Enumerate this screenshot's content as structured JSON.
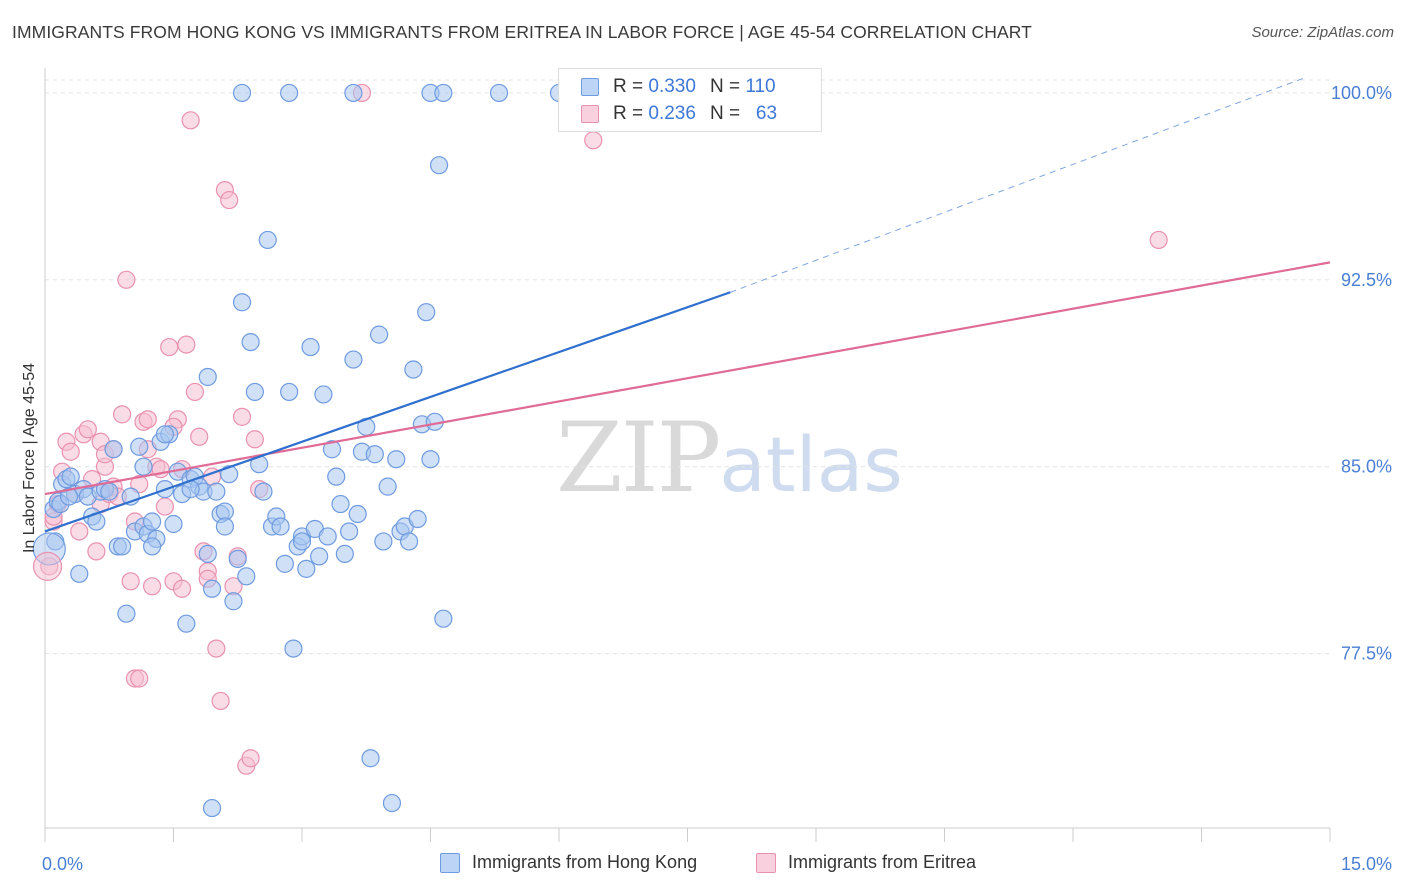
{
  "title": "IMMIGRANTS FROM HONG KONG VS IMMIGRANTS FROM ERITREA IN LABOR FORCE | AGE 45-54 CORRELATION CHART",
  "source": "Source: ZipAtlas.com",
  "watermark": {
    "zip": "ZIP",
    "atlas": "atlas"
  },
  "legend": {
    "blue": {
      "r_label": "R =",
      "r_value": "0.330",
      "n_label": "N =",
      "n_value": "110"
    },
    "pink": {
      "r_label": "R =",
      "r_value": "0.236",
      "n_label": "N =",
      "n_value": "63"
    }
  },
  "colors": {
    "blue_fill": "#a8c6f0",
    "blue_stroke": "#6f9be0",
    "blue_line": "#2f6fce",
    "pink_fill": "#f6c0d2",
    "pink_stroke": "#e991b0",
    "pink_line": "#df6b96",
    "grid": "#e3e3e3",
    "tick_text": "#4a7fd4"
  },
  "chart_data": {
    "type": "scatter",
    "title": "IMMIGRANTS FROM HONG KONG VS IMMIGRANTS FROM ERITREA IN LABOR FORCE | AGE 45-54 CORRELATION CHART",
    "xlabel": "",
    "ylabel": "In Labor Force | Age 45-54",
    "xlim": [
      0,
      15
    ],
    "ylim": [
      70.5,
      101
    ],
    "x_ticks": [
      0,
      15
    ],
    "x_tick_labels": [
      "0.0%",
      "15.0%"
    ],
    "y_ticks": [
      77.5,
      85.0,
      92.5,
      100.0
    ],
    "y_tick_labels": [
      "77.5%",
      "85.0%",
      "92.5%",
      "100.0%"
    ],
    "grid": true,
    "legend_position": "top-center",
    "series": [
      {
        "name": "Immigrants from Hong Kong",
        "color": "#a8c6f0",
        "r": 0.33,
        "n": 110,
        "trend": {
          "x0": 0.0,
          "y0": 82.4,
          "x1": 8.0,
          "y1": 92.0,
          "dashed_to_x": 14.7,
          "dashed_to_y": 100.6
        },
        "points": [
          [
            0.1,
            83.3
          ],
          [
            0.15,
            83.6
          ],
          [
            0.2,
            84.3
          ],
          [
            0.25,
            84.5
          ],
          [
            0.3,
            84.6
          ],
          [
            0.35,
            83.9
          ],
          [
            0.4,
            80.7
          ],
          [
            0.45,
            84.1
          ],
          [
            0.5,
            83.8
          ],
          [
            0.55,
            83.0
          ],
          [
            0.6,
            82.8
          ],
          [
            0.65,
            84.0
          ],
          [
            0.7,
            84.1
          ],
          [
            0.75,
            84.0
          ],
          [
            0.8,
            85.7
          ],
          [
            0.85,
            81.8
          ],
          [
            0.9,
            81.8
          ],
          [
            0.95,
            79.1
          ],
          [
            1.0,
            83.8
          ],
          [
            1.05,
            82.4
          ],
          [
            1.1,
            85.8
          ],
          [
            1.15,
            82.6
          ],
          [
            1.2,
            82.3
          ],
          [
            1.25,
            82.8
          ],
          [
            1.3,
            82.1
          ],
          [
            1.35,
            86.0
          ],
          [
            1.4,
            84.1
          ],
          [
            1.45,
            86.3
          ],
          [
            1.5,
            82.7
          ],
          [
            1.55,
            84.8
          ],
          [
            1.6,
            83.9
          ],
          [
            1.65,
            78.7
          ],
          [
            1.7,
            84.5
          ],
          [
            1.75,
            84.6
          ],
          [
            1.8,
            84.2
          ],
          [
            1.85,
            84.0
          ],
          [
            1.9,
            81.5
          ],
          [
            1.95,
            80.1
          ],
          [
            2.0,
            84.0
          ],
          [
            2.05,
            83.1
          ],
          [
            2.1,
            83.2
          ],
          [
            2.15,
            84.7
          ],
          [
            2.2,
            79.6
          ],
          [
            2.25,
            81.3
          ],
          [
            2.3,
            91.6
          ],
          [
            2.35,
            80.6
          ],
          [
            2.4,
            90.0
          ],
          [
            2.45,
            88.0
          ],
          [
            2.5,
            85.1
          ],
          [
            2.55,
            84.0
          ],
          [
            2.6,
            94.1
          ],
          [
            2.65,
            82.6
          ],
          [
            2.7,
            83.0
          ],
          [
            2.75,
            82.6
          ],
          [
            2.8,
            81.1
          ],
          [
            2.85,
            88.0
          ],
          [
            2.9,
            77.7
          ],
          [
            2.95,
            81.8
          ],
          [
            3.0,
            82.2
          ],
          [
            3.05,
            80.9
          ],
          [
            3.1,
            89.8
          ],
          [
            3.15,
            82.5
          ],
          [
            3.2,
            81.4
          ],
          [
            3.25,
            87.9
          ],
          [
            3.3,
            82.2
          ],
          [
            3.35,
            85.7
          ],
          [
            3.4,
            84.6
          ],
          [
            3.45,
            83.5
          ],
          [
            3.5,
            81.5
          ],
          [
            3.55,
            82.4
          ],
          [
            3.6,
            89.3
          ],
          [
            3.65,
            83.1
          ],
          [
            3.7,
            85.6
          ],
          [
            3.75,
            86.6
          ],
          [
            3.8,
            73.3
          ],
          [
            3.85,
            85.5
          ],
          [
            3.9,
            90.3
          ],
          [
            3.95,
            82.0
          ],
          [
            4.0,
            84.2
          ],
          [
            4.05,
            71.5
          ],
          [
            4.1,
            85.3
          ],
          [
            4.15,
            82.4
          ],
          [
            4.2,
            82.6
          ],
          [
            4.25,
            82.0
          ],
          [
            4.3,
            88.9
          ],
          [
            4.35,
            82.9
          ],
          [
            4.4,
            86.7
          ],
          [
            4.45,
            91.2
          ],
          [
            4.5,
            85.3
          ],
          [
            4.55,
            86.8
          ],
          [
            4.6,
            97.1
          ],
          [
            4.65,
            78.9
          ],
          [
            2.3,
            100.0
          ],
          [
            2.85,
            100.0
          ],
          [
            3.6,
            100.0
          ],
          [
            4.5,
            100.0
          ],
          [
            4.65,
            100.0
          ],
          [
            5.3,
            100.0
          ],
          [
            6.0,
            100.0
          ],
          [
            0.12,
            82.0
          ],
          [
            0.18,
            83.5
          ],
          [
            0.28,
            83.8
          ],
          [
            1.25,
            81.8
          ],
          [
            1.9,
            88.6
          ],
          [
            1.15,
            85.0
          ],
          [
            1.4,
            86.3
          ],
          [
            1.95,
            71.3
          ],
          [
            3.0,
            82.0
          ],
          [
            2.1,
            82.6
          ],
          [
            1.7,
            84.1
          ]
        ]
      },
      {
        "name": "Immigrants from Eritrea",
        "color": "#f6c0d2",
        "r": 0.236,
        "n": 63,
        "trend": {
          "x0": 0.0,
          "y0": 83.9,
          "x1": 15.0,
          "y1": 93.2
        },
        "points": [
          [
            0.05,
            81.0
          ],
          [
            0.1,
            82.8
          ],
          [
            0.15,
            83.5
          ],
          [
            0.2,
            84.8
          ],
          [
            0.25,
            86.0
          ],
          [
            0.3,
            85.6
          ],
          [
            0.35,
            83.9
          ],
          [
            0.4,
            82.4
          ],
          [
            0.45,
            86.3
          ],
          [
            0.5,
            86.5
          ],
          [
            0.55,
            84.5
          ],
          [
            0.6,
            81.6
          ],
          [
            0.65,
            83.5
          ],
          [
            0.7,
            85.0
          ],
          [
            0.75,
            83.9
          ],
          [
            0.8,
            84.2
          ],
          [
            0.85,
            83.8
          ],
          [
            0.9,
            87.1
          ],
          [
            0.95,
            92.5
          ],
          [
            1.0,
            80.4
          ],
          [
            1.05,
            82.8
          ],
          [
            1.1,
            84.3
          ],
          [
            1.15,
            86.8
          ],
          [
            1.2,
            85.7
          ],
          [
            1.25,
            80.2
          ],
          [
            1.3,
            85.0
          ],
          [
            1.35,
            84.9
          ],
          [
            1.4,
            83.4
          ],
          [
            1.45,
            89.8
          ],
          [
            1.5,
            80.4
          ],
          [
            1.55,
            86.9
          ],
          [
            1.6,
            80.1
          ],
          [
            1.65,
            89.9
          ],
          [
            1.7,
            98.9
          ],
          [
            1.75,
            88.0
          ],
          [
            1.8,
            86.2
          ],
          [
            1.85,
            81.6
          ],
          [
            1.9,
            80.8
          ],
          [
            1.95,
            84.6
          ],
          [
            2.0,
            77.7
          ],
          [
            2.05,
            75.6
          ],
          [
            2.1,
            96.1
          ],
          [
            2.15,
            95.7
          ],
          [
            2.2,
            80.2
          ],
          [
            2.25,
            81.4
          ],
          [
            2.3,
            87.0
          ],
          [
            2.35,
            73.0
          ],
          [
            2.4,
            73.3
          ],
          [
            2.45,
            86.1
          ],
          [
            2.5,
            84.1
          ],
          [
            1.05,
            76.5
          ],
          [
            1.1,
            76.5
          ],
          [
            0.65,
            86.0
          ],
          [
            0.7,
            85.5
          ],
          [
            0.8,
            85.7
          ],
          [
            1.2,
            86.9
          ],
          [
            1.5,
            86.6
          ],
          [
            1.6,
            84.9
          ],
          [
            1.9,
            80.5
          ],
          [
            3.7,
            100.0
          ],
          [
            6.4,
            98.1
          ],
          [
            13.0,
            94.1
          ],
          [
            0.1,
            83.0
          ]
        ]
      }
    ]
  },
  "bottom_legend": [
    "Immigrants from Hong Kong",
    "Immigrants from Eritrea"
  ]
}
